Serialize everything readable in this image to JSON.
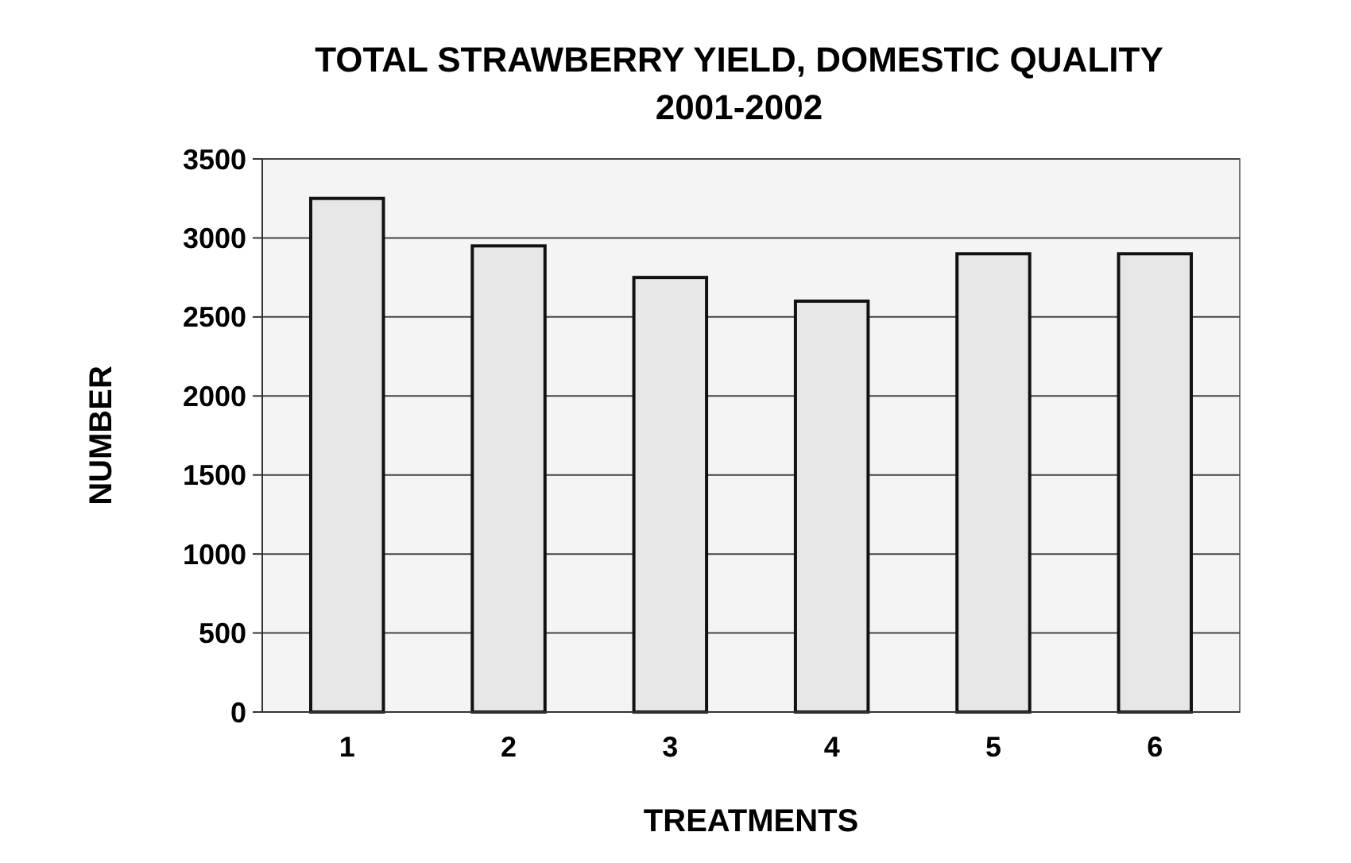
{
  "chart_data": {
    "type": "bar",
    "title": "TOTAL STRAWBERRY YIELD, DOMESTIC QUALITY",
    "subtitle": "2001-2002",
    "xlabel": "TREATMENTS",
    "ylabel": "NUMBER",
    "categories": [
      "1",
      "2",
      "3",
      "4",
      "5",
      "6"
    ],
    "values": [
      3250,
      2950,
      2750,
      2600,
      2900,
      2900
    ],
    "color": "#e6e6e6",
    "ylim": [
      0,
      3500
    ],
    "yticks": [
      0,
      500,
      1000,
      1500,
      2000,
      2500,
      3000,
      3500
    ],
    "grid": "y"
  }
}
